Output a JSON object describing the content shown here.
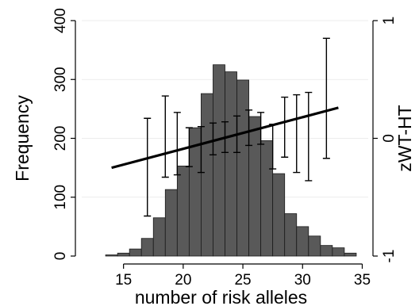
{
  "chart_data": {
    "type": "bar",
    "xlabel": "number of risk alleles",
    "ylabel": "Frequency",
    "y2label": "zWT-HT",
    "xlim": [
      11.5,
      35.5
    ],
    "ylim": [
      0,
      400
    ],
    "y2lim": [
      -1,
      1
    ],
    "x_ticks": [
      15,
      20,
      25,
      30,
      35
    ],
    "y_ticks": [
      0,
      100,
      200,
      300,
      400
    ],
    "y2_ticks": [
      -1,
      0,
      1
    ],
    "grid": true,
    "bars": {
      "bin_width": 1,
      "x": [
        14,
        15,
        16,
        17,
        18,
        19,
        20,
        21,
        22,
        23,
        24,
        25,
        26,
        27,
        28,
        29,
        30,
        31,
        32,
        33,
        34
      ],
      "values": [
        2,
        5,
        12,
        30,
        65,
        113,
        153,
        218,
        276,
        325,
        313,
        299,
        237,
        196,
        140,
        72,
        50,
        34,
        18,
        14,
        5
      ]
    },
    "fit_line": {
      "x": [
        14,
        33
      ],
      "y2": [
        -0.25,
        0.26
      ]
    },
    "error_bars": [
      {
        "x": 17,
        "lo": -0.66,
        "hi": 0.17
      },
      {
        "x": 18.5,
        "lo": -0.33,
        "hi": 0.36
      },
      {
        "x": 19.5,
        "lo": -0.31,
        "hi": 0.22
      },
      {
        "x": 20.5,
        "lo": -0.24,
        "hi": 0.09
      },
      {
        "x": 21.5,
        "lo": -0.29,
        "hi": 0.1
      },
      {
        "x": 22.5,
        "lo": -0.14,
        "hi": 0.13
      },
      {
        "x": 23.5,
        "lo": -0.12,
        "hi": 0.14
      },
      {
        "x": 24.5,
        "lo": -0.12,
        "hi": 0.19
      },
      {
        "x": 25.5,
        "lo": -0.06,
        "hi": 0.24
      },
      {
        "x": 26.5,
        "lo": -0.05,
        "hi": 0.22
      },
      {
        "x": 27.5,
        "lo": -0.26,
        "hi": 0.12
      },
      {
        "x": 28.5,
        "lo": -0.16,
        "hi": 0.35
      },
      {
        "x": 29.5,
        "lo": -0.29,
        "hi": 0.37
      },
      {
        "x": 30.5,
        "lo": -0.36,
        "hi": 0.39
      },
      {
        "x": 32,
        "lo": -0.17,
        "hi": 0.85
      }
    ]
  }
}
